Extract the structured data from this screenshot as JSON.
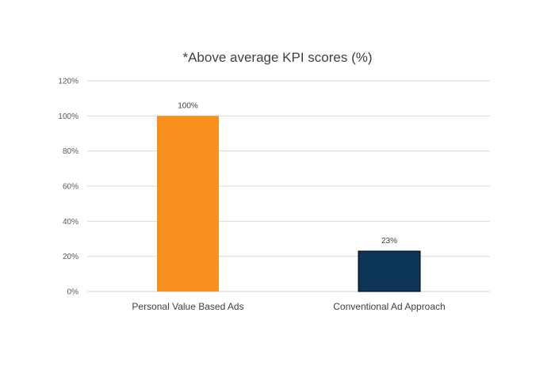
{
  "chart_data": {
    "type": "bar",
    "title": "*Above average KPI scores (%)",
    "categories": [
      "Personal Value Based Ads",
      "Conventional Ad Approach"
    ],
    "values": [
      100,
      23
    ],
    "data_labels": [
      "100%",
      "23%"
    ],
    "colors": [
      "#f7901e",
      "#0d3557"
    ],
    "border_color": "#1f3b57",
    "ylim": [
      0,
      120
    ],
    "yticks": [
      0,
      20,
      40,
      60,
      80,
      100,
      120
    ],
    "ytick_labels": [
      "0%",
      "20%",
      "40%",
      "60%",
      "80%",
      "100%",
      "120%"
    ],
    "grid": true,
    "legend": "none"
  }
}
